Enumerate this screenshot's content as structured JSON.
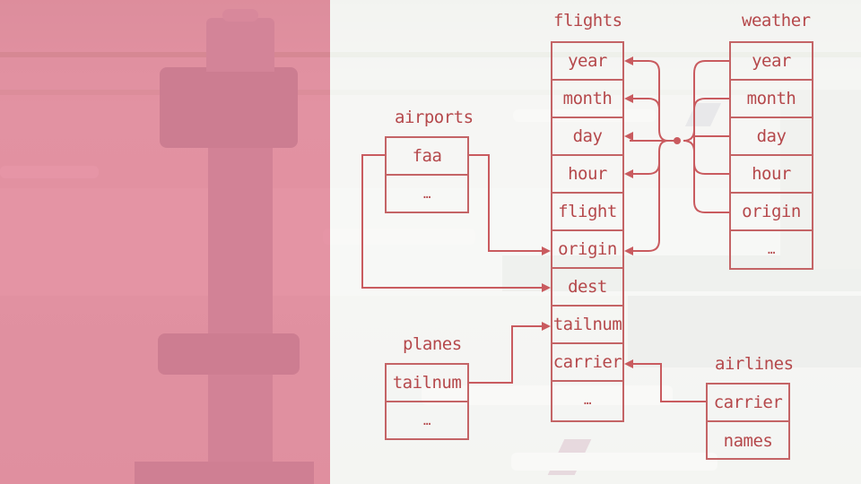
{
  "tables": {
    "flights": {
      "title": "flights",
      "fields": [
        "year",
        "month",
        "day",
        "hour",
        "flight",
        "origin",
        "dest",
        "tailnum",
        "carrier",
        "…"
      ]
    },
    "weather": {
      "title": "weather",
      "fields": [
        "year",
        "month",
        "day",
        "hour",
        "origin",
        "…"
      ]
    },
    "airports": {
      "title": "airports",
      "fields": [
        "faa",
        "…"
      ]
    },
    "planes": {
      "title": "planes",
      "fields": [
        "tailnum",
        "…"
      ]
    },
    "airlines": {
      "title": "airlines",
      "fields": [
        "carrier",
        "names"
      ]
    }
  },
  "relations": [
    {
      "from": "airports.faa",
      "to": "flights.origin"
    },
    {
      "from": "airports.faa",
      "to": "flights.dest"
    },
    {
      "from": "planes.tailnum",
      "to": "flights.tailnum"
    },
    {
      "from": "airlines.carrier",
      "to": "flights.carrier"
    },
    {
      "from": "weather.year",
      "to": "flights.year"
    },
    {
      "from": "weather.month",
      "to": "flights.month"
    },
    {
      "from": "weather.day",
      "to": "flights.day"
    },
    {
      "from": "weather.hour",
      "to": "flights.hour"
    },
    {
      "from": "weather.origin",
      "to": "flights.origin"
    }
  ],
  "colors": {
    "line": "#c95b5f",
    "text": "#b5484b",
    "left_tint": "#da506e"
  }
}
